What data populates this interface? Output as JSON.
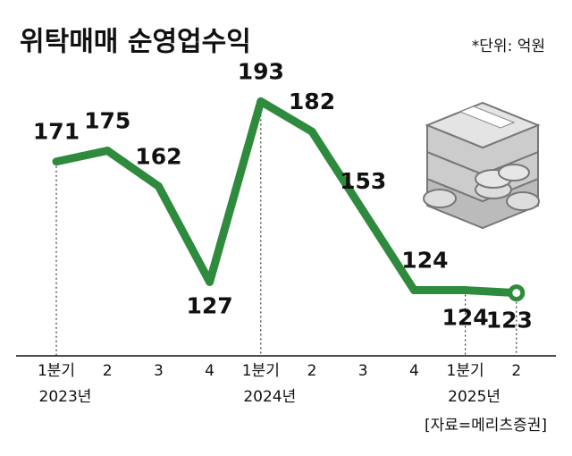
{
  "chart_data": {
    "type": "line",
    "title": "위탁매매 순영업수익",
    "unit_note": "*단위: 억원",
    "source": "[자료=메리츠증권]",
    "categories": [
      "1분기",
      "2",
      "3",
      "4",
      "1분기",
      "2",
      "3",
      "4",
      "1분기",
      "2"
    ],
    "years": [
      "2023년",
      null,
      null,
      null,
      "2024년",
      null,
      null,
      null,
      "2025년",
      null
    ],
    "series": [
      {
        "name": "위탁매매 순영업수익",
        "color": "#2e8a3c",
        "values": [
          171,
          175,
          162,
          127,
          193,
          182,
          153,
          124,
          124,
          123
        ]
      }
    ],
    "ylim": [
      100,
      200
    ]
  }
}
